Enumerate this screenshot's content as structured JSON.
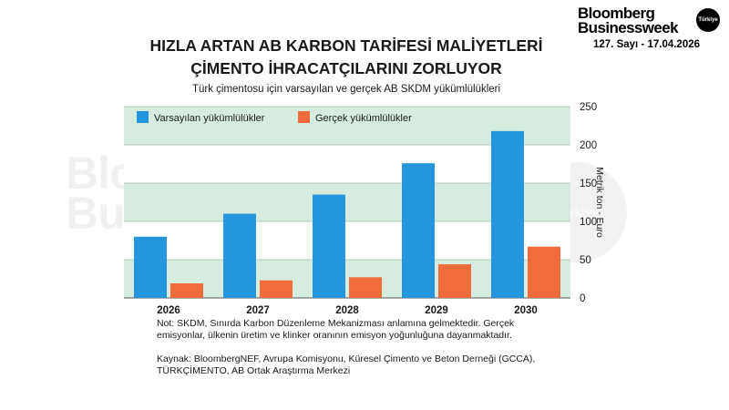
{
  "brand": {
    "line1": "Bloomberg",
    "line2": "Businessweek",
    "badge": "Türkiye",
    "issue": "127. Sayı - 17.04.2026"
  },
  "watermark": {
    "line1": "Bloomberg",
    "line2": "Businessweek",
    "badge": "Türkiye"
  },
  "chart_data": {
    "type": "bar",
    "title": "HIZLA ARTAN AB KARBON TARİFESİ MALİYETLERİ ÇİMENTO İHRACATÇILARINI ZORLUYOR",
    "title_lines": [
      "HIZLA ARTAN AB KARBON TARİFESİ MALİYETLERİ",
      "ÇİMENTO İHRACATÇILARINI ZORLUYOR"
    ],
    "subtitle": "Türk çimentosu için varsayılan ve gerçek AB SKDM yükümlülükleri",
    "ylabel": "Metrik ton - Euro",
    "ylim": [
      0,
      250
    ],
    "yticks": [
      0,
      50,
      100,
      150,
      200,
      250
    ],
    "categories": [
      "2026",
      "2027",
      "2028",
      "2029",
      "2030"
    ],
    "series": [
      {
        "name": "Varsayılan yükümlülükler",
        "color": "#2596dc",
        "values": [
          80,
          110,
          135,
          176,
          218
        ]
      },
      {
        "name": "Gerçek yükümlülükler",
        "color": "#f26b3a",
        "values": [
          19,
          23,
          27,
          44,
          67
        ]
      }
    ],
    "legend_position": "top-left",
    "band_color": "#d6ecde",
    "grid": true
  },
  "note": "Not: SKDM, Sınırda Karbon Düzenleme Mekanizması anlamına gelmektedir. Gerçek emisyonlar, ülkenin üretim ve klinker oranının emisyon yoğunluğuna dayanmaktadır.",
  "source": "Kaynak: BloombergNEF, Avrupa Komisyonu, Küresel Çimento ve Beton Derneği (GCCA), TÜRKÇİMENTO, AB Ortak Araştırma Merkezi"
}
